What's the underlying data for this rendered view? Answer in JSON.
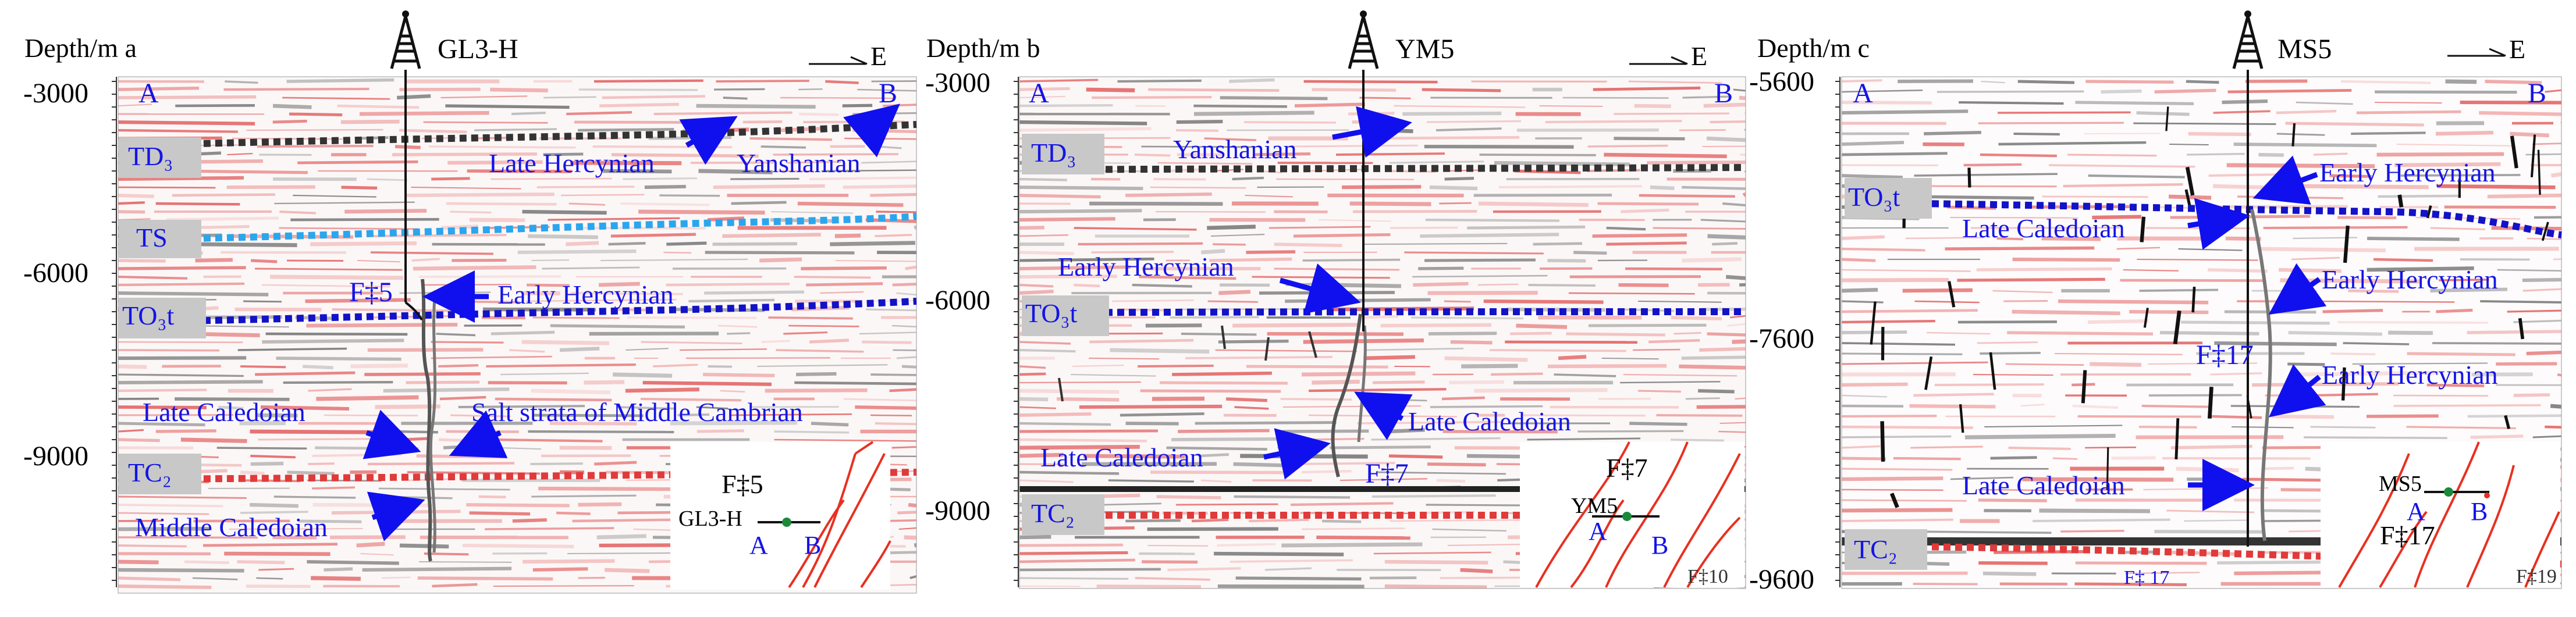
{
  "colors": {
    "annotation_blue": "#1414e6",
    "arrow_blue": "#1010ee",
    "td3_line": "#333333",
    "ts_line": "#2aa6ee",
    "to3t_line": "#1212c8",
    "tc2_line": "#e03a3a",
    "fault_red": "#e83020",
    "label_box": "#c8c8c8",
    "reflector_red": "#e05050",
    "reflector_gray": "#555555"
  },
  "icons": {
    "well": "drilling-rig-icon",
    "direction": "east-arrow-icon"
  },
  "panels": [
    {
      "id": "a",
      "depth_title": "Depth/m",
      "panel_letter": "a",
      "well": "GL3-H",
      "direction": "E",
      "end_left": "A",
      "end_right": "B",
      "ticks": [
        "-3000",
        "-6000",
        "-9000"
      ],
      "horizons": [
        "TD₃",
        "TS",
        "TO₃t",
        "TC₂"
      ],
      "fault": "F‡5",
      "annotations": [
        "Late Hercynian",
        "Yanshanian",
        "Early Hercynian",
        "Late Caledoian",
        "Salt strata of Middle Cambrian",
        "Middle  Caledoian"
      ],
      "inset": {
        "fault": "F‡5",
        "well": "GL3-H",
        "left": "A",
        "right": "B"
      }
    },
    {
      "id": "b",
      "depth_title": "Depth/m",
      "panel_letter": "b",
      "well": "YM5",
      "direction": "E",
      "end_left": "A",
      "end_right": "B",
      "ticks": [
        "-3000",
        "-6000",
        "-9000"
      ],
      "horizons": [
        "TD₃",
        "TO₃t",
        "TC₂"
      ],
      "fault": "F‡7",
      "annotations": [
        "Yanshanian",
        "Early Hercynian",
        "Late Caledoian",
        "Late Caledoian"
      ],
      "inset": {
        "fault": "F‡7",
        "well": "YM5",
        "left": "A",
        "right": "B",
        "other": "F‡10"
      }
    },
    {
      "id": "c",
      "depth_title": "Depth/m",
      "panel_letter": "c",
      "well": "MS5",
      "direction": "E",
      "end_left": "A",
      "end_right": "B",
      "ticks": [
        "-5600",
        "-7600",
        "-9600"
      ],
      "horizons": [
        "TO₃t",
        "TC₂"
      ],
      "fault": "F‡17",
      "fault_small": "F‡ 17",
      "annotations": [
        "Early Hercynian",
        "Late Caledoian",
        "Early Hercynian",
        "Early Hercynian",
        "Late Caledoian"
      ],
      "inset": {
        "fault": "F‡17",
        "well": "MS5",
        "left": "A",
        "right": "B",
        "other": "F‡19"
      }
    }
  ]
}
